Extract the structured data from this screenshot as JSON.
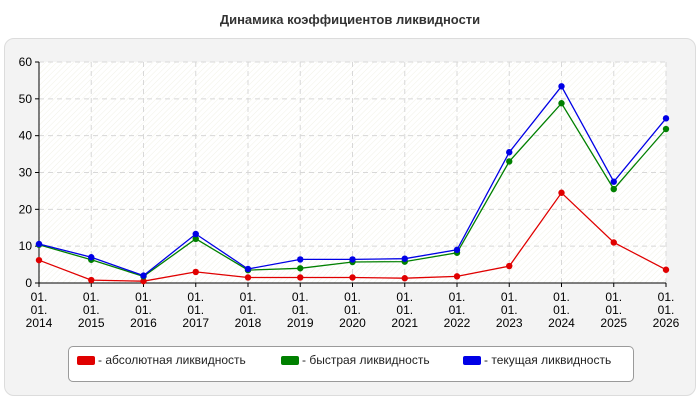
{
  "chart_data": {
    "type": "line",
    "title": "Динамика коэффициентов ликвидности",
    "x": [
      "01.\n01.\n2014",
      "01.\n01.\n2015",
      "01.\n01.\n2016",
      "01.\n01.\n2017",
      "01.\n01.\n2018",
      "01.\n01.\n2019",
      "01.\n01.\n2020",
      "01.\n01.\n2021",
      "01.\n01.\n2022",
      "01.\n01.\n2023",
      "01.\n01.\n2024",
      "01.\n01.\n2025",
      "01.\n01.\n2026"
    ],
    "ylim": [
      0,
      60
    ],
    "yticks": [
      "0",
      "10",
      "20",
      "30",
      "40",
      "50",
      "60"
    ],
    "grid": true,
    "legend_position": "bottom",
    "series": [
      {
        "name": "- абсолютная ликвидность",
        "color": "#e00000",
        "values": [
          6.2,
          0.8,
          0.5,
          3.0,
          1.5,
          1.5,
          1.5,
          1.3,
          1.8,
          4.6,
          24.5,
          11.0,
          3.6
        ]
      },
      {
        "name": "- быстрая ликвидность",
        "color": "#008000",
        "values": [
          10.4,
          6.3,
          1.8,
          12.0,
          3.5,
          4.0,
          5.7,
          5.8,
          8.2,
          33.0,
          48.8,
          25.5,
          41.8
        ]
      },
      {
        "name": "- текущая ликвидность",
        "color": "#0000e6",
        "values": [
          10.6,
          7.0,
          2.0,
          13.3,
          3.8,
          6.4,
          6.4,
          6.6,
          9.0,
          35.5,
          53.4,
          27.5,
          44.7
        ]
      }
    ]
  }
}
